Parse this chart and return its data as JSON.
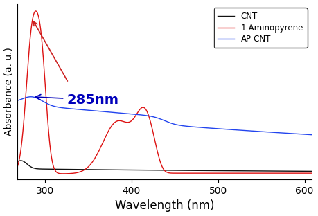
{
  "xlabel": "Wavelength (nm)",
  "ylabel": "Absorbance (a. u.)",
  "xlim": [
    268,
    608
  ],
  "ylim": [
    -0.03,
    1.15
  ],
  "annotation_text": "285nm",
  "legend_labels": [
    "CNT",
    "1-Aminopyrene",
    "AP-CNT"
  ],
  "cnt_color": "#111111",
  "ap_color": "#dd1111",
  "apcnt_color": "#2244ee",
  "background_color": "#ffffff",
  "xlabel_fontsize": 12,
  "ylabel_fontsize": 10,
  "annotation_fontsize": 14,
  "annotation_color": "#0000bb",
  "arrow_color": "#0000bb",
  "red_arrow_color": "#cc2222",
  "xticks": [
    300,
    400,
    500,
    600
  ]
}
